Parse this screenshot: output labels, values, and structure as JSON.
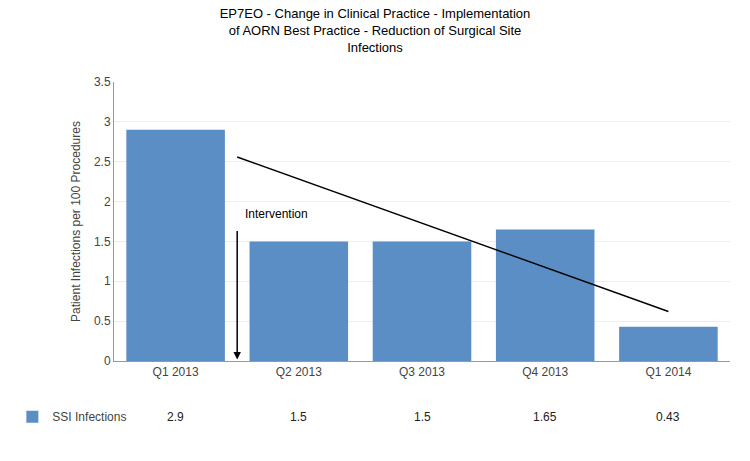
{
  "chart_data": {
    "type": "bar",
    "title": "EP7EO - Change in Clinical Practice - Implementation\nof AORN Best Practice - Reduction of Surgical Site\nInfections",
    "categories": [
      "Q1 2013",
      "Q2 2013",
      "Q3 2013",
      "Q4 2013",
      "Q1 2014"
    ],
    "ylabel": "Patient Infections per 100 Procedures",
    "ylim": [
      0,
      3.5
    ],
    "yticks": [
      0,
      0.5,
      1,
      1.5,
      2,
      2.5,
      3,
      3.5
    ],
    "grid": true,
    "legend": "bottom",
    "data_labels": true,
    "series": [
      {
        "name": "SSI Infections",
        "color": "#5b8ec4",
        "values": [
          2.9,
          1.5,
          1.5,
          1.65,
          0.43
        ]
      },
      {
        "type": "line",
        "color": "#000000",
        "x": [
          0.5,
          4.0
        ],
        "values": [
          2.56,
          0.62
        ]
      }
    ],
    "annotations": [
      {
        "text": "Intervention",
        "x": 0.55,
        "y": 1.73,
        "arrow": {
          "x": 0.5,
          "from": 1.65,
          "to": 0.02
        }
      }
    ]
  }
}
